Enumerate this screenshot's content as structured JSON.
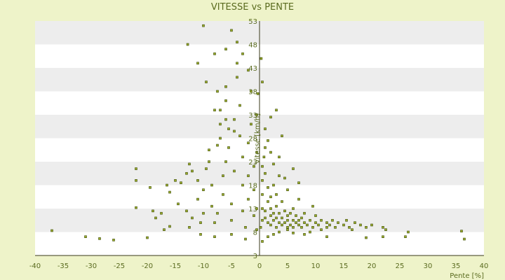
{
  "chart_data": {
    "type": "scatter",
    "title": "VITESSE vs PENTE",
    "xlabel": "Pente [%]",
    "ylabel": "Vitesse [km/h]",
    "xlim": [
      -40,
      40
    ],
    "ylim": [
      3,
      53
    ],
    "xticks": [
      -40,
      -35,
      -30,
      -25,
      -20,
      -15,
      -10,
      -5,
      0,
      5,
      10,
      15,
      20,
      25,
      30,
      35,
      40
    ],
    "yticks": [
      3,
      8,
      13,
      18,
      23,
      28,
      33,
      38,
      43,
      48,
      53
    ],
    "grid": "horizontal alternating bands",
    "legend": "none",
    "colors": {
      "background": "#eef3c9",
      "plot_band_light": "#ffffff",
      "plot_band_dark": "#ededed",
      "marker_fill": "#9aaa2a",
      "marker_stroke": "#3f4f0a",
      "text": "#5a6b1f",
      "axis": "#3a3a1a"
    },
    "series": [
      {
        "points": [
          [
            -37.0,
            8.3
          ],
          [
            -31.0,
            7.0
          ],
          [
            -28.5,
            6.6
          ],
          [
            -26.0,
            6.3
          ],
          [
            -20.0,
            6.8
          ],
          [
            -22.0,
            21.5
          ],
          [
            -22.0,
            19.0
          ],
          [
            -22.0,
            13.2
          ],
          [
            -19.5,
            17.5
          ],
          [
            -19.0,
            12.5
          ],
          [
            -18.5,
            11.0
          ],
          [
            -17.5,
            12.0
          ],
          [
            -17.0,
            8.5
          ],
          [
            -16.0,
            9.2
          ],
          [
            -16.5,
            18.0
          ],
          [
            -16.0,
            16.5
          ],
          [
            -15.0,
            19.0
          ],
          [
            -14.5,
            14.0
          ],
          [
            -14.0,
            18.5
          ],
          [
            -13.0,
            12.5
          ],
          [
            -12.0,
            11.0
          ],
          [
            -12.5,
            9.0
          ],
          [
            -13.0,
            20.5
          ],
          [
            -12.0,
            21.0
          ],
          [
            -12.5,
            22.5
          ],
          [
            -11.0,
            19.0
          ],
          [
            -11.0,
            15.0
          ],
          [
            -10.5,
            10.0
          ],
          [
            -10.5,
            7.5
          ],
          [
            -10.0,
            12.0
          ],
          [
            -10.0,
            17.0
          ],
          [
            -9.5,
            21.5
          ],
          [
            -9.0,
            23.0
          ],
          [
            -9.0,
            25.5
          ],
          [
            -8.5,
            18.0
          ],
          [
            -8.5,
            13.5
          ],
          [
            -8.0,
            10.0
          ],
          [
            -8.0,
            7.0
          ],
          [
            -7.5,
            12.0
          ],
          [
            -7.5,
            26.5
          ],
          [
            -7.0,
            28.0
          ],
          [
            -7.0,
            31.0
          ],
          [
            -7.0,
            34.0
          ],
          [
            -6.5,
            16.0
          ],
          [
            -6.5,
            20.0
          ],
          [
            -6.0,
            23.0
          ],
          [
            -6.0,
            36.0
          ],
          [
            -6.0,
            39.0
          ],
          [
            -5.5,
            30.0
          ],
          [
            -5.5,
            26.0
          ],
          [
            -5.0,
            14.0
          ],
          [
            -5.0,
            10.5
          ],
          [
            -5.0,
            7.5
          ],
          [
            -4.5,
            21.0
          ],
          [
            -4.5,
            32.0
          ],
          [
            -4.0,
            41.0
          ],
          [
            -4.0,
            44.0
          ],
          [
            -3.5,
            35.0
          ],
          [
            -3.5,
            28.5
          ],
          [
            -3.0,
            24.0
          ],
          [
            -3.0,
            18.0
          ],
          [
            -3.0,
            12.5
          ],
          [
            -2.5,
            9.0
          ],
          [
            -2.5,
            6.5
          ],
          [
            -2.0,
            15.0
          ],
          [
            -2.0,
            20.0
          ],
          [
            -2.0,
            27.0
          ],
          [
            -1.5,
            31.0
          ],
          [
            -1.5,
            38.0
          ],
          [
            -1.0,
            22.0
          ],
          [
            -1.0,
            17.0
          ],
          [
            -1.0,
            11.5
          ],
          [
            -0.5,
            8.5
          ],
          [
            -0.5,
            13.0
          ],
          [
            -0.5,
            25.0
          ],
          [
            -0.5,
            33.0
          ],
          [
            -2.0,
            42.5
          ],
          [
            -3.0,
            46.0
          ],
          [
            -4.0,
            48.5
          ],
          [
            -5.0,
            51.0
          ],
          [
            -6.0,
            47.0
          ],
          [
            -8.0,
            46.0
          ],
          [
            -10.0,
            52.0
          ],
          [
            -11.0,
            44.0
          ],
          [
            -12.8,
            48.0
          ],
          [
            -9.5,
            40.0
          ],
          [
            -7.5,
            38.0
          ],
          [
            -8.0,
            34.0
          ],
          [
            -6.0,
            32.0
          ],
          [
            -4.5,
            29.5
          ],
          [
            0.2,
            9.0
          ],
          [
            0.5,
            10.5
          ],
          [
            0.5,
            13.0
          ],
          [
            0.5,
            16.0
          ],
          [
            0.5,
            19.0
          ],
          [
            0.5,
            22.0
          ],
          [
            0.8,
            24.0
          ],
          [
            1.0,
            11.0
          ],
          [
            1.0,
            12.5
          ],
          [
            1.0,
            20.5
          ],
          [
            1.5,
            10.0
          ],
          [
            1.5,
            14.5
          ],
          [
            1.5,
            17.5
          ],
          [
            2.0,
            9.5
          ],
          [
            2.0,
            11.5
          ],
          [
            2.0,
            13.0
          ],
          [
            2.0,
            15.5
          ],
          [
            2.5,
            10.5
          ],
          [
            2.5,
            12.0
          ],
          [
            2.5,
            18.0
          ],
          [
            3.0,
            9.0
          ],
          [
            3.0,
            11.0
          ],
          [
            3.0,
            13.5
          ],
          [
            3.0,
            16.0
          ],
          [
            3.5,
            10.0
          ],
          [
            3.5,
            12.0
          ],
          [
            3.5,
            20.0
          ],
          [
            4.0,
            9.5
          ],
          [
            4.0,
            11.0
          ],
          [
            4.0,
            14.5
          ],
          [
            4.0,
            28.5
          ],
          [
            4.5,
            10.0
          ],
          [
            4.5,
            12.5
          ],
          [
            5.0,
            9.0
          ],
          [
            5.0,
            10.5
          ],
          [
            5.0,
            11.5
          ],
          [
            5.0,
            17.0
          ],
          [
            5.5,
            9.5
          ],
          [
            5.5,
            12.0
          ],
          [
            6.0,
            9.0
          ],
          [
            6.0,
            10.5
          ],
          [
            6.0,
            13.0
          ],
          [
            6.5,
            10.0
          ],
          [
            6.5,
            11.5
          ],
          [
            7.0,
            9.5
          ],
          [
            7.0,
            10.5
          ],
          [
            7.0,
            15.0
          ],
          [
            7.5,
            9.0
          ],
          [
            7.5,
            11.0
          ],
          [
            8.0,
            10.0
          ],
          [
            8.0,
            12.0
          ],
          [
            8.5,
            9.5
          ],
          [
            9.0,
            10.5
          ],
          [
            9.0,
            8.0
          ],
          [
            9.5,
            9.0
          ],
          [
            10.0,
            10.0
          ],
          [
            10.0,
            11.5
          ],
          [
            10.5,
            9.5
          ],
          [
            11.0,
            8.5
          ],
          [
            11.0,
            10.5
          ],
          [
            12.0,
            9.0
          ],
          [
            12.0,
            10.0
          ],
          [
            12.5,
            9.5
          ],
          [
            13.0,
            10.5
          ],
          [
            13.5,
            9.0
          ],
          [
            14.0,
            10.0
          ],
          [
            15.0,
            9.5
          ],
          [
            15.5,
            10.5
          ],
          [
            16.0,
            9.0
          ],
          [
            16.5,
            8.5
          ],
          [
            17.0,
            10.0
          ],
          [
            18.0,
            9.5
          ],
          [
            19.0,
            9.0
          ],
          [
            20.0,
            9.5
          ],
          [
            22.0,
            9.0
          ],
          [
            22.5,
            8.5
          ],
          [
            19.0,
            6.8
          ],
          [
            22.0,
            7.0
          ],
          [
            26.0,
            7.0
          ],
          [
            26.5,
            8.0
          ],
          [
            36.5,
            6.5
          ],
          [
            36.0,
            8.2
          ],
          [
            1.0,
            30.0
          ],
          [
            1.0,
            26.0
          ],
          [
            2.5,
            22.5
          ],
          [
            3.5,
            24.0
          ],
          [
            6.0,
            21.5
          ],
          [
            0.5,
            6.0
          ],
          [
            1.5,
            7.0
          ],
          [
            2.5,
            7.5
          ],
          [
            3.5,
            8.0
          ],
          [
            6.0,
            7.8
          ],
          [
            8.0,
            7.5
          ],
          [
            12.0,
            7.0
          ],
          [
            5.0,
            8.5
          ],
          [
            3.0,
            34.0
          ],
          [
            2.0,
            32.5
          ],
          [
            0.3,
            45.0
          ],
          [
            0.5,
            40.0
          ],
          [
            -0.3,
            37.5
          ],
          [
            1.5,
            27.5
          ],
          [
            2.0,
            25.0
          ],
          [
            4.5,
            19.5
          ],
          [
            7.0,
            18.5
          ],
          [
            9.5,
            13.5
          ]
        ]
      }
    ]
  }
}
